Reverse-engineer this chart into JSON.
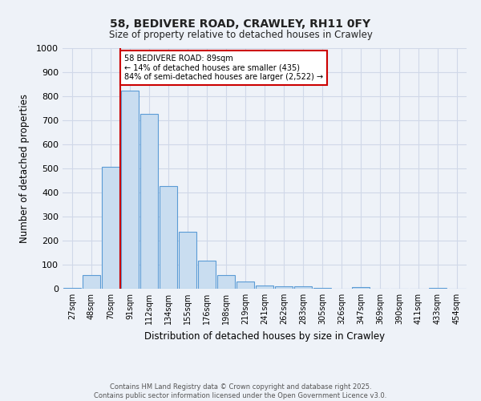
{
  "title": "58, BEDIVERE ROAD, CRAWLEY, RH11 0FY",
  "subtitle": "Size of property relative to detached houses in Crawley",
  "xlabel": "Distribution of detached houses by size in Crawley",
  "ylabel": "Number of detached properties",
  "bin_labels": [
    "27sqm",
    "48sqm",
    "70sqm",
    "91sqm",
    "112sqm",
    "134sqm",
    "155sqm",
    "176sqm",
    "198sqm",
    "219sqm",
    "241sqm",
    "262sqm",
    "283sqm",
    "305sqm",
    "326sqm",
    "347sqm",
    "369sqm",
    "390sqm",
    "411sqm",
    "433sqm",
    "454sqm"
  ],
  "bar_values": [
    5,
    57,
    507,
    825,
    728,
    428,
    238,
    118,
    57,
    30,
    12,
    10,
    10,
    2,
    0,
    7,
    0,
    0,
    0,
    5,
    0
  ],
  "bar_color": "#c9ddf0",
  "bar_edge_color": "#5b9bd5",
  "property_line_x": 3,
  "property_line_label": "58 BEDIVERE ROAD: 89sqm",
  "annotation_line1": "← 14% of detached houses are smaller (435)",
  "annotation_line2": "84% of semi-detached houses are larger (2,522) →",
  "annotation_box_color": "#ffffff",
  "annotation_box_edge_color": "#cc0000",
  "vline_color": "#cc0000",
  "ylim": [
    0,
    1000
  ],
  "yticks": [
    0,
    100,
    200,
    300,
    400,
    500,
    600,
    700,
    800,
    900,
    1000
  ],
  "grid_color": "#d0d8e8",
  "bg_color": "#eef2f8",
  "footer_line1": "Contains HM Land Registry data © Crown copyright and database right 2025.",
  "footer_line2": "Contains public sector information licensed under the Open Government Licence v3.0."
}
